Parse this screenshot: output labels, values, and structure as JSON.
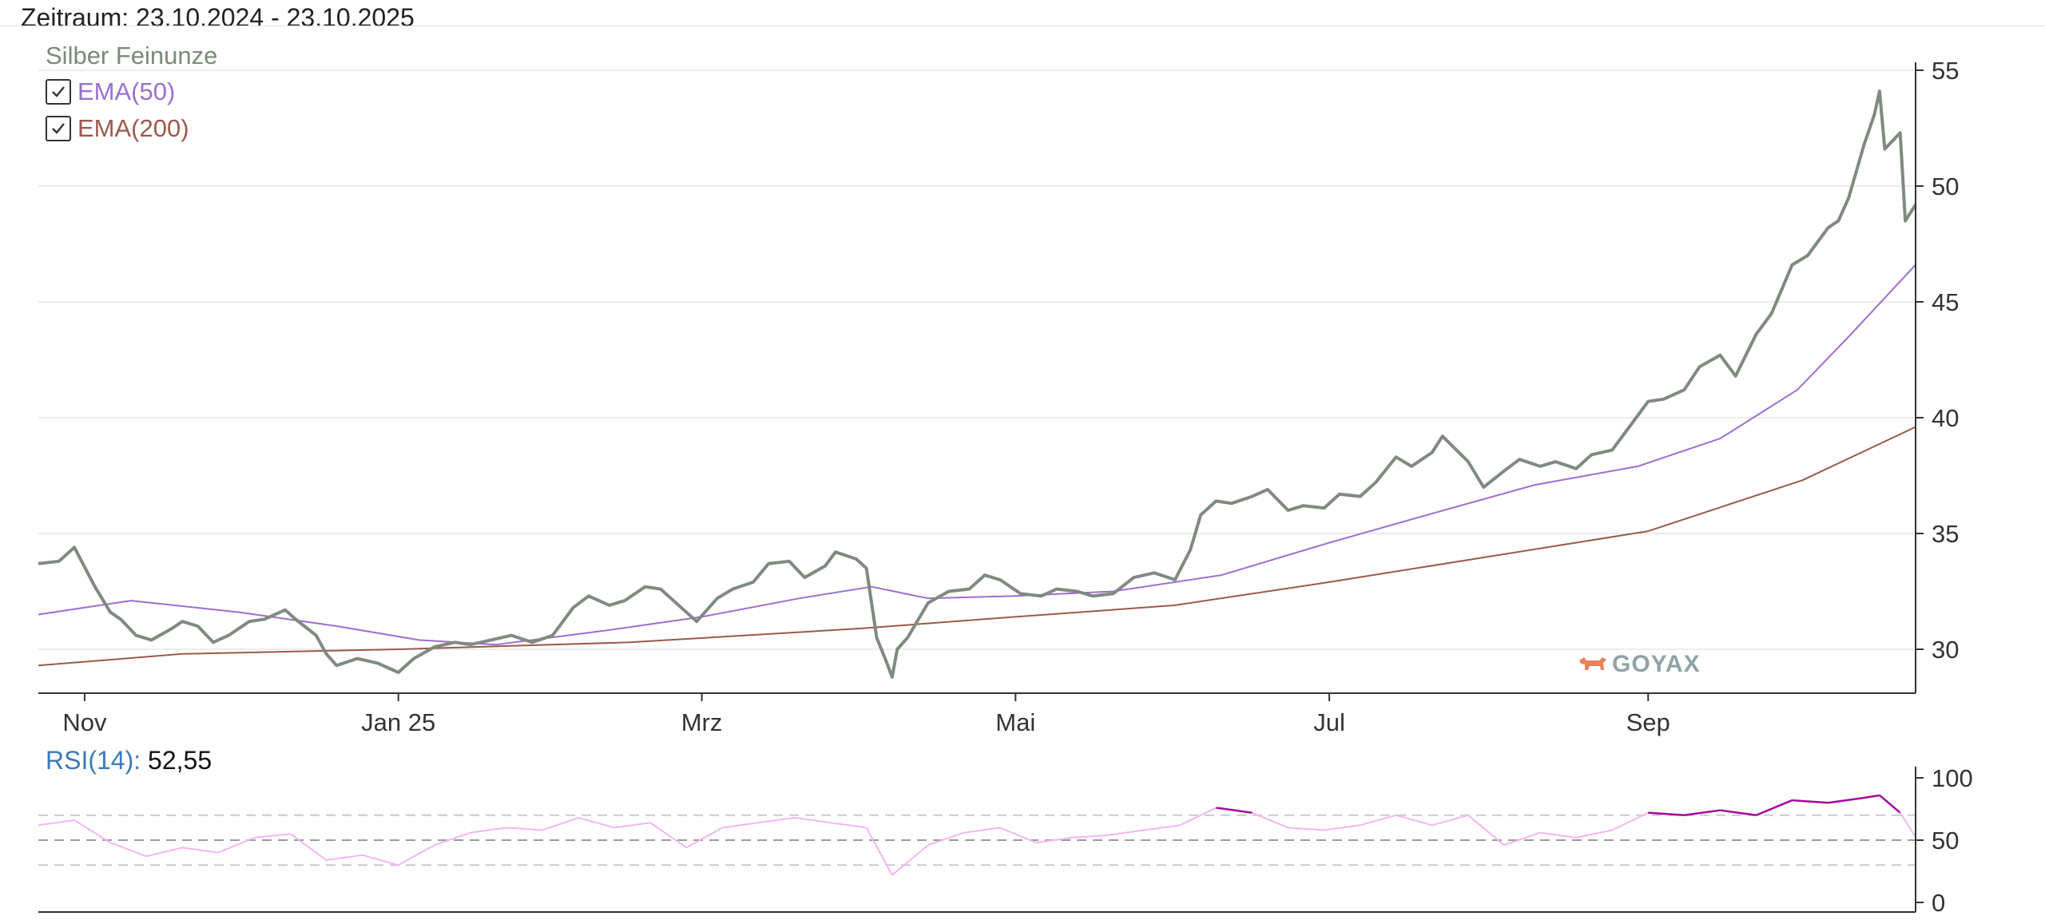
{
  "header": {
    "period": "Zeitraum: 23.10.2024 - 23.10.2025"
  },
  "legend": {
    "title": "Silber Feinunze",
    "items": [
      {
        "label": "EMA(50)",
        "checked": true,
        "color": "#9b6fcf"
      },
      {
        "label": "EMA(200)",
        "checked": true,
        "color": "#9a5a4a"
      }
    ]
  },
  "logo": {
    "text": "GOYAX"
  },
  "rsi": {
    "label": "RSI(14)",
    "value": "52,55"
  },
  "chart_data": [
    {
      "type": "line",
      "title": "Silber Feinunze",
      "x_labels": [
        "Nov",
        "Jan 25",
        "Mrz",
        "Mai",
        "Jul",
        "Sep"
      ],
      "x_label_positions": [
        "2024-11-01",
        "2025-01-01",
        "2025-03-01",
        "2025-05-01",
        "2025-07-01",
        "2025-09-01"
      ],
      "x_range": [
        "2024-10-23",
        "2025-10-23"
      ],
      "ylim": [
        28,
        55
      ],
      "y_ticks": [
        30,
        35,
        40,
        45,
        50,
        55
      ],
      "grid": true,
      "series": [
        {
          "name": "Silber Feinunze",
          "color": "#7f8a80",
          "points": [
            [
              "2024-10-23",
              33.7
            ],
            [
              "2024-10-27",
              33.8
            ],
            [
              "2024-10-30",
              34.4
            ],
            [
              "2024-11-03",
              32.7
            ],
            [
              "2024-11-06",
              31.6
            ],
            [
              "2024-11-08",
              31.3
            ],
            [
              "2024-11-11",
              30.6
            ],
            [
              "2024-11-14",
              30.4
            ],
            [
              "2024-11-18",
              30.9
            ],
            [
              "2024-11-20",
              31.2
            ],
            [
              "2024-11-23",
              31.0
            ],
            [
              "2024-11-26",
              30.3
            ],
            [
              "2024-11-29",
              30.6
            ],
            [
              "2024-12-03",
              31.2
            ],
            [
              "2024-12-06",
              31.3
            ],
            [
              "2024-12-10",
              31.7
            ],
            [
              "2024-12-12",
              31.3
            ],
            [
              "2024-12-16",
              30.6
            ],
            [
              "2024-12-18",
              29.8
            ],
            [
              "2024-12-20",
              29.3
            ],
            [
              "2024-12-24",
              29.6
            ],
            [
              "2024-12-28",
              29.4
            ],
            [
              "2025-01-01",
              29.0
            ],
            [
              "2025-01-04",
              29.6
            ],
            [
              "2025-01-08",
              30.1
            ],
            [
              "2025-01-12",
              30.3
            ],
            [
              "2025-01-15",
              30.2
            ],
            [
              "2025-01-19",
              30.4
            ],
            [
              "2025-01-23",
              30.6
            ],
            [
              "2025-01-27",
              30.3
            ],
            [
              "2025-01-31",
              30.6
            ],
            [
              "2025-02-04",
              31.8
            ],
            [
              "2025-02-07",
              32.3
            ],
            [
              "2025-02-11",
              31.9
            ],
            [
              "2025-02-14",
              32.1
            ],
            [
              "2025-02-18",
              32.7
            ],
            [
              "2025-02-21",
              32.6
            ],
            [
              "2025-02-25",
              31.8
            ],
            [
              "2025-02-28",
              31.2
            ],
            [
              "2025-03-04",
              32.2
            ],
            [
              "2025-03-07",
              32.6
            ],
            [
              "2025-03-11",
              32.9
            ],
            [
              "2025-03-14",
              33.7
            ],
            [
              "2025-03-18",
              33.8
            ],
            [
              "2025-03-21",
              33.1
            ],
            [
              "2025-03-25",
              33.6
            ],
            [
              "2025-03-27",
              34.2
            ],
            [
              "2025-03-31",
              33.9
            ],
            [
              "2025-04-02",
              33.5
            ],
            [
              "2025-04-04",
              30.5
            ],
            [
              "2025-04-06",
              29.4
            ],
            [
              "2025-04-07",
              28.8
            ],
            [
              "2025-04-08",
              30.0
            ],
            [
              "2025-04-10",
              30.5
            ],
            [
              "2025-04-14",
              32.0
            ],
            [
              "2025-04-18",
              32.5
            ],
            [
              "2025-04-22",
              32.6
            ],
            [
              "2025-04-25",
              33.2
            ],
            [
              "2025-04-28",
              33.0
            ],
            [
              "2025-05-02",
              32.4
            ],
            [
              "2025-05-06",
              32.3
            ],
            [
              "2025-05-09",
              32.6
            ],
            [
              "2025-05-13",
              32.5
            ],
            [
              "2025-05-16",
              32.3
            ],
            [
              "2025-05-20",
              32.4
            ],
            [
              "2025-05-24",
              33.1
            ],
            [
              "2025-05-28",
              33.3
            ],
            [
              "2025-06-01",
              33.0
            ],
            [
              "2025-06-04",
              34.3
            ],
            [
              "2025-06-06",
              35.8
            ],
            [
              "2025-06-09",
              36.4
            ],
            [
              "2025-06-12",
              36.3
            ],
            [
              "2025-06-16",
              36.6
            ],
            [
              "2025-06-19",
              36.9
            ],
            [
              "2025-06-23",
              36.0
            ],
            [
              "2025-06-26",
              36.2
            ],
            [
              "2025-06-30",
              36.1
            ],
            [
              "2025-07-03",
              36.7
            ],
            [
              "2025-07-07",
              36.6
            ],
            [
              "2025-07-10",
              37.2
            ],
            [
              "2025-07-14",
              38.3
            ],
            [
              "2025-07-17",
              37.9
            ],
            [
              "2025-07-21",
              38.5
            ],
            [
              "2025-07-23",
              39.2
            ],
            [
              "2025-07-28",
              38.1
            ],
            [
              "2025-07-31",
              37.0
            ],
            [
              "2025-08-04",
              37.7
            ],
            [
              "2025-08-07",
              38.2
            ],
            [
              "2025-08-11",
              37.9
            ],
            [
              "2025-08-14",
              38.1
            ],
            [
              "2025-08-18",
              37.8
            ],
            [
              "2025-08-21",
              38.4
            ],
            [
              "2025-08-25",
              38.6
            ],
            [
              "2025-08-28",
              39.5
            ],
            [
              "2025-09-01",
              40.7
            ],
            [
              "2025-09-04",
              40.8
            ],
            [
              "2025-09-08",
              41.2
            ],
            [
              "2025-09-11",
              42.2
            ],
            [
              "2025-09-15",
              42.7
            ],
            [
              "2025-09-18",
              41.8
            ],
            [
              "2025-09-22",
              43.6
            ],
            [
              "2025-09-25",
              44.5
            ],
            [
              "2025-09-29",
              46.6
            ],
            [
              "2025-10-02",
              47.0
            ],
            [
              "2025-10-06",
              48.2
            ],
            [
              "2025-10-08",
              48.5
            ],
            [
              "2025-10-10",
              49.5
            ],
            [
              "2025-10-13",
              51.8
            ],
            [
              "2025-10-15",
              53.1
            ],
            [
              "2025-10-16",
              54.1
            ],
            [
              "2025-10-17",
              51.6
            ],
            [
              "2025-10-20",
              52.3
            ],
            [
              "2025-10-21",
              48.5
            ],
            [
              "2025-10-23",
              49.2
            ]
          ]
        },
        {
          "name": "EMA(50)",
          "color": "#9b6fcf",
          "points": [
            [
              "2024-10-23",
              31.5
            ],
            [
              "2024-11-10",
              32.1
            ],
            [
              "2024-12-01",
              31.6
            ],
            [
              "2024-12-20",
              31.0
            ],
            [
              "2025-01-05",
              30.4
            ],
            [
              "2025-01-20",
              30.2
            ],
            [
              "2025-02-10",
              30.8
            ],
            [
              "2025-03-01",
              31.4
            ],
            [
              "2025-03-20",
              32.2
            ],
            [
              "2025-04-03",
              32.7
            ],
            [
              "2025-04-14",
              32.2
            ],
            [
              "2025-05-01",
              32.3
            ],
            [
              "2025-05-20",
              32.5
            ],
            [
              "2025-06-10",
              33.2
            ],
            [
              "2025-07-01",
              34.6
            ],
            [
              "2025-07-20",
              35.8
            ],
            [
              "2025-08-10",
              37.1
            ],
            [
              "2025-08-30",
              37.9
            ],
            [
              "2025-09-15",
              39.1
            ],
            [
              "2025-09-30",
              41.2
            ],
            [
              "2025-10-10",
              43.5
            ],
            [
              "2025-10-23",
              46.6
            ]
          ]
        },
        {
          "name": "EMA(200)",
          "color": "#9a5a4a",
          "points": [
            [
              "2024-10-23",
              29.3
            ],
            [
              "2024-11-20",
              29.8
            ],
            [
              "2025-01-01",
              30.0
            ],
            [
              "2025-02-15",
              30.3
            ],
            [
              "2025-04-01",
              30.9
            ],
            [
              "2025-05-01",
              31.4
            ],
            [
              "2025-06-01",
              31.9
            ],
            [
              "2025-07-01",
              32.9
            ],
            [
              "2025-08-01",
              34.0
            ],
            [
              "2025-09-01",
              35.1
            ],
            [
              "2025-10-01",
              37.3
            ],
            [
              "2025-10-23",
              39.6
            ]
          ]
        }
      ]
    },
    {
      "type": "line",
      "title": "RSI(14)",
      "ylim": [
        0,
        100
      ],
      "y_ticks": [
        0,
        50,
        100
      ],
      "reference_lines": [
        30,
        50,
        70
      ],
      "current_value": 52.55,
      "series": [
        {
          "name": "RSI(14)",
          "color": "#f3b6f0",
          "overbought_color": "#a3089d",
          "points": [
            [
              "2024-10-23",
              62
            ],
            [
              "2024-10-30",
              66
            ],
            [
              "2024-11-06",
              48
            ],
            [
              "2024-11-13",
              37
            ],
            [
              "2024-11-20",
              44
            ],
            [
              "2024-11-27",
              40
            ],
            [
              "2024-12-04",
              52
            ],
            [
              "2024-12-11",
              55
            ],
            [
              "2024-12-18",
              34
            ],
            [
              "2024-12-25",
              38
            ],
            [
              "2025-01-01",
              30
            ],
            [
              "2025-01-08",
              46
            ],
            [
              "2025-01-15",
              56
            ],
            [
              "2025-01-22",
              60
            ],
            [
              "2025-01-29",
              58
            ],
            [
              "2025-02-05",
              68
            ],
            [
              "2025-02-12",
              60
            ],
            [
              "2025-02-19",
              64
            ],
            [
              "2025-02-26",
              44
            ],
            [
              "2025-03-05",
              60
            ],
            [
              "2025-03-12",
              64
            ],
            [
              "2025-03-19",
              68
            ],
            [
              "2025-03-26",
              64
            ],
            [
              "2025-04-02",
              60
            ],
            [
              "2025-04-07",
              22
            ],
            [
              "2025-04-14",
              46
            ],
            [
              "2025-04-21",
              56
            ],
            [
              "2025-04-28",
              60
            ],
            [
              "2025-05-05",
              48
            ],
            [
              "2025-05-12",
              52
            ],
            [
              "2025-05-19",
              54
            ],
            [
              "2025-05-26",
              58
            ],
            [
              "2025-06-02",
              62
            ],
            [
              "2025-06-09",
              76
            ],
            [
              "2025-06-16",
              72
            ],
            [
              "2025-06-23",
              60
            ],
            [
              "2025-06-30",
              58
            ],
            [
              "2025-07-07",
              62
            ],
            [
              "2025-07-14",
              70
            ],
            [
              "2025-07-21",
              62
            ],
            [
              "2025-07-28",
              70
            ],
            [
              "2025-08-04",
              46
            ],
            [
              "2025-08-11",
              56
            ],
            [
              "2025-08-18",
              52
            ],
            [
              "2025-08-25",
              58
            ],
            [
              "2025-09-01",
              72
            ],
            [
              "2025-09-08",
              70
            ],
            [
              "2025-09-15",
              74
            ],
            [
              "2025-09-22",
              70
            ],
            [
              "2025-09-29",
              82
            ],
            [
              "2025-10-06",
              80
            ],
            [
              "2025-10-13",
              84
            ],
            [
              "2025-10-16",
              86
            ],
            [
              "2025-10-20",
              72
            ],
            [
              "2025-10-23",
              52.55
            ]
          ]
        }
      ]
    }
  ]
}
